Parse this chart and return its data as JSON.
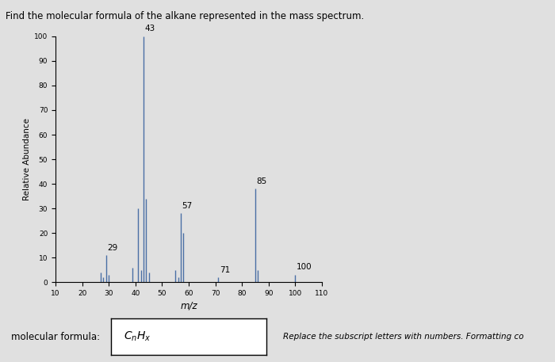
{
  "title_text": "Find the molecular formula of the alkane represented in the mass spectrum.",
  "xlabel": "m/z",
  "ylabel": "Relative Abundance",
  "xlim": [
    10,
    110
  ],
  "ylim": [
    0,
    100
  ],
  "xticks": [
    10,
    20,
    30,
    40,
    50,
    60,
    70,
    80,
    90,
    100,
    110
  ],
  "yticks": [
    0,
    10,
    20,
    30,
    40,
    50,
    60,
    70,
    80,
    90,
    100
  ],
  "bar_color": "#4a6fa5",
  "background_color": "#e8e8e8",
  "peaks": [
    {
      "mz": 27,
      "abundance": 4,
      "label": null
    },
    {
      "mz": 28,
      "abundance": 2,
      "label": null
    },
    {
      "mz": 29,
      "abundance": 11,
      "label": "29"
    },
    {
      "mz": 30,
      "abundance": 3,
      "label": null
    },
    {
      "mz": 39,
      "abundance": 6,
      "label": null
    },
    {
      "mz": 41,
      "abundance": 30,
      "label": null
    },
    {
      "mz": 42,
      "abundance": 5,
      "label": null
    },
    {
      "mz": 43,
      "abundance": 100,
      "label": "43"
    },
    {
      "mz": 44,
      "abundance": 34,
      "label": null
    },
    {
      "mz": 45,
      "abundance": 4,
      "label": null
    },
    {
      "mz": 55,
      "abundance": 5,
      "label": null
    },
    {
      "mz": 56,
      "abundance": 2,
      "label": null
    },
    {
      "mz": 57,
      "abundance": 28,
      "label": "57"
    },
    {
      "mz": 58,
      "abundance": 20,
      "label": null
    },
    {
      "mz": 71,
      "abundance": 2,
      "label": "71"
    },
    {
      "mz": 85,
      "abundance": 38,
      "label": "85"
    },
    {
      "mz": 86,
      "abundance": 5,
      "label": null
    },
    {
      "mz": 100,
      "abundance": 3,
      "label": "100"
    }
  ],
  "formula_label": "$C_nH_x$",
  "bottom_text_left": "molecular formula:",
  "bottom_text_right": "Replace the subscript letters with numbers. Formatting co",
  "figure_bg": "#e0e0e0"
}
